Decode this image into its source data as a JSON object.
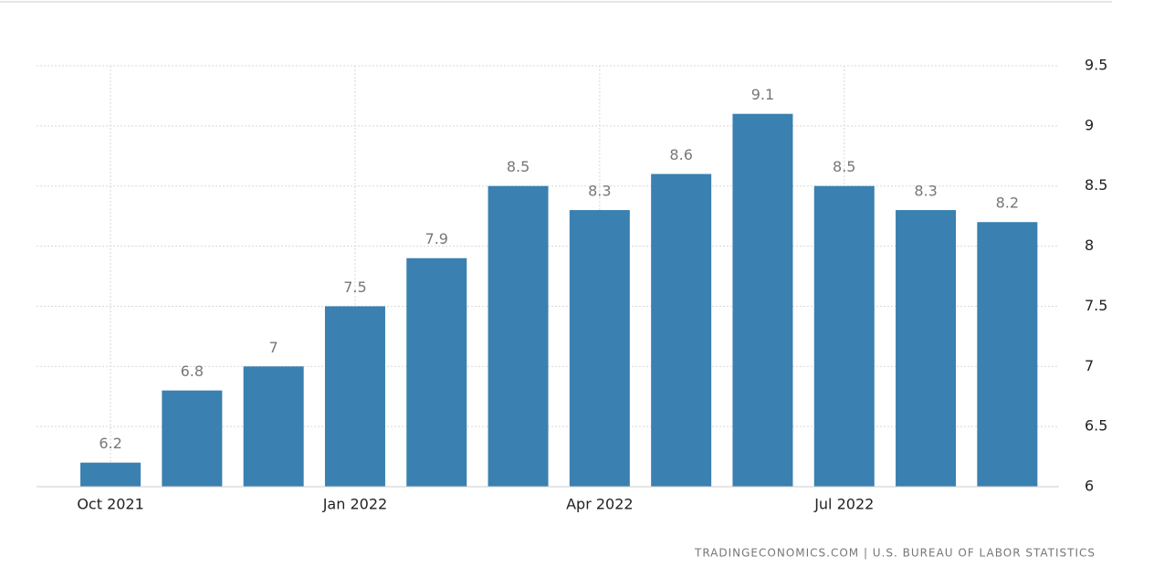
{
  "chart_data": {
    "type": "bar",
    "categories": [
      "Oct 2021",
      null,
      null,
      "Jan 2022",
      null,
      null,
      "Apr 2022",
      null,
      null,
      "Jul 2022",
      null,
      null
    ],
    "values": [
      6.2,
      6.8,
      7,
      7.5,
      7.9,
      8.5,
      8.3,
      8.6,
      9.1,
      8.5,
      8.3,
      8.2
    ],
    "color": "#3a80b0",
    "ylim": [
      6,
      9.5
    ],
    "yticks": [
      6,
      6.5,
      7,
      7.5,
      8,
      8.5,
      9,
      9.5
    ],
    "grid": true,
    "source": "TRADINGECONOMICS.COM | U.S. BUREAU OF LABOR STATISTICS"
  }
}
